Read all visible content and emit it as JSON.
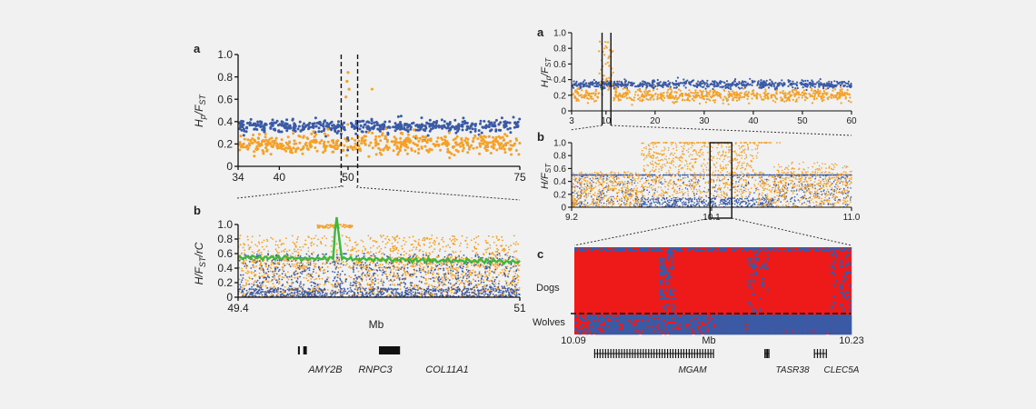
{
  "colors": {
    "background": "#f1f1f1",
    "pet_series": "#f5a027",
    "wild_series": "#3a5aa6",
    "smooth_line": "#3cb83a",
    "heat_red": "#ee1a1a",
    "heat_blue": "#3a5aa6",
    "ink": "#111111"
  },
  "chart_data": [
    {
      "id": "left-a",
      "type": "scatter",
      "panel_label": "a",
      "ylabel": "Hp/FST",
      "xticks": [
        "34",
        "40",
        "50",
        "75"
      ],
      "xtick_values": [
        34,
        40,
        50,
        75
      ],
      "yticks": [
        "0",
        "0.2",
        "0.4",
        "0.6",
        "0.8",
        "1.0"
      ],
      "xlim": [
        34,
        75
      ],
      "ylim": [
        0,
        1
      ],
      "series": [
        {
          "color": "#f5a027",
          "typical_level": 0.2,
          "peak_region": [
            49.5,
            50.5
          ],
          "peak_values": [
            0.62,
            0.76,
            0.84,
            0.69
          ]
        },
        {
          "color": "#3a5aa6",
          "typical_level": 0.36
        }
      ],
      "highlight_window": [
        49.4,
        51
      ]
    },
    {
      "id": "left-b",
      "type": "scatter",
      "panel_label": "b",
      "ylabel": "H/FST/rC",
      "xlabel": "Mb",
      "xticks": [
        "49.4",
        "51"
      ],
      "xtick_values": [
        49.4,
        51
      ],
      "yticks": [
        "0",
        "0.2",
        "0.4",
        "0.6",
        "0.8",
        "1.0"
      ],
      "xlim": [
        49.4,
        51
      ],
      "ylim": [
        0,
        1
      ],
      "series": [
        {
          "color": "#f5a027"
        },
        {
          "color": "#3a5aa6"
        },
        {
          "color": "#3cb83a",
          "kind": "line",
          "typical_level": 0.5,
          "peak_x": 49.96,
          "peak_value": 1.1
        }
      ],
      "genes": [
        {
          "name": "AMY2B",
          "start": 49.74,
          "end": 49.75
        },
        {
          "name": "RNPC3",
          "start": 49.77,
          "end": 49.79
        },
        {
          "name": "COL11A1",
          "start": 50.2,
          "end": 50.32
        }
      ]
    },
    {
      "id": "right-a",
      "type": "scatter",
      "panel_label": "a",
      "ylabel": "Hp/FST",
      "xticks": [
        "3",
        "10",
        "20",
        "30",
        "40",
        "50",
        "60"
      ],
      "xtick_values": [
        3,
        10,
        20,
        30,
        40,
        50,
        60
      ],
      "yticks": [
        "0",
        "0.2",
        "0.4",
        "0.6",
        "0.8",
        "1.0"
      ],
      "xlim": [
        3,
        60
      ],
      "ylim": [
        0,
        1
      ],
      "series": [
        {
          "color": "#f5a027",
          "typical_level": 0.2
        },
        {
          "color": "#3a5aa6",
          "typical_level": 0.34
        }
      ],
      "highlight_window": [
        9.2,
        11
      ]
    },
    {
      "id": "right-b",
      "type": "scatter",
      "panel_label": "b",
      "ylabel": "H/FST",
      "xticks": [
        "9.2",
        "10.1",
        "11.0"
      ],
      "xtick_values": [
        9.2,
        10.1,
        11.0
      ],
      "yticks": [
        "0",
        "0.2",
        "0.4",
        "0.6",
        "0.8",
        "1.0"
      ],
      "xlim": [
        9.2,
        11.0
      ],
      "ylim": [
        0,
        1
      ],
      "series": [
        {
          "color": "#f5a027"
        },
        {
          "color": "#3a5aa6"
        }
      ],
      "highlight_window": [
        10.09,
        10.23
      ]
    },
    {
      "id": "right-c",
      "type": "heatmap",
      "panel_label": "c",
      "row_groups": [
        "Dogs",
        "Wolves"
      ],
      "xlabel": "Mb",
      "xticks": [
        "10.09",
        "10.23"
      ],
      "xlim": [
        10.09,
        10.23
      ],
      "colors": [
        "#ee1a1a",
        "#3a5aa6"
      ],
      "genes": [
        {
          "name": "MGAM",
          "start": 10.1,
          "end": 10.16
        },
        {
          "name": "TASR38",
          "start": 10.186,
          "end": 10.188
        },
        {
          "name": "CLEC5A",
          "start": 10.211,
          "end": 10.217
        }
      ]
    }
  ]
}
